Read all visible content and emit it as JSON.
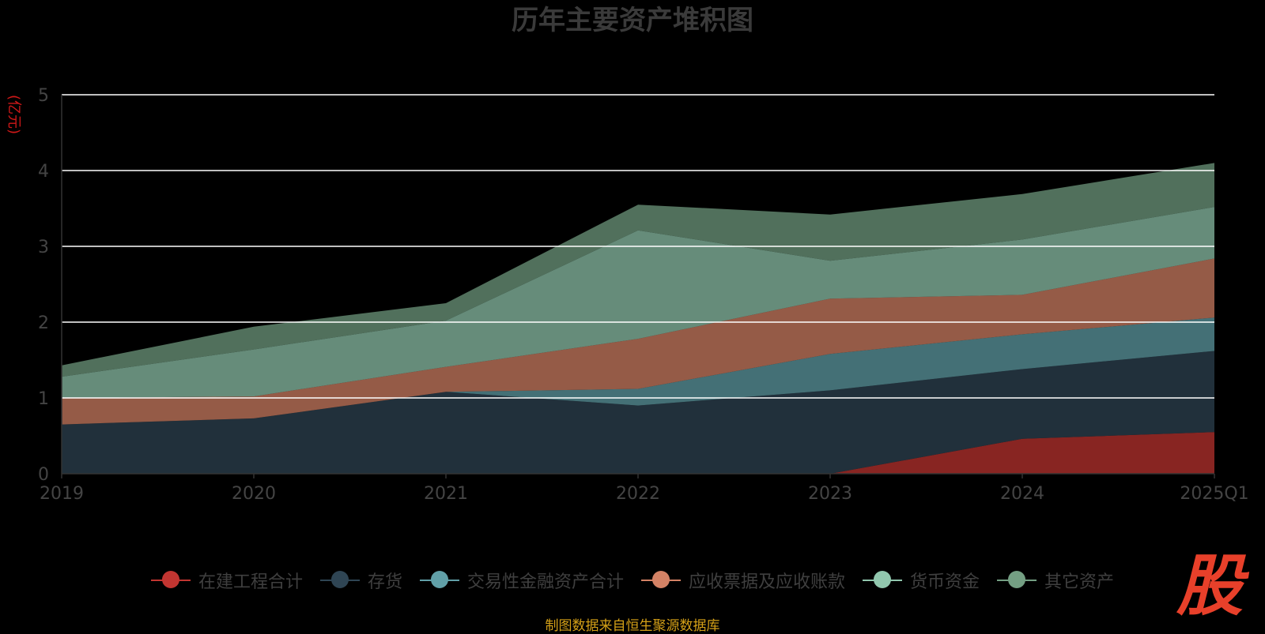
{
  "chart_data": {
    "type": "area",
    "stacked": true,
    "title": "历年主要资产堆积图",
    "ylabel": "(亿元)",
    "ylim": [
      0,
      5
    ],
    "yticks": [
      "0",
      "1",
      "2",
      "3",
      "4",
      "5"
    ],
    "categories": [
      "2019",
      "2020",
      "2021",
      "2022",
      "2023",
      "2024",
      "2025Q1"
    ],
    "series": [
      {
        "name": "在建工程合计",
        "color": "#c23531",
        "values": [
          0,
          0,
          0,
          0,
          0,
          0.46,
          0.55
        ]
      },
      {
        "name": "存货",
        "color": "#2f4554",
        "values": [
          0.65,
          0.73,
          1.08,
          0.9,
          1.1,
          0.92,
          1.07
        ]
      },
      {
        "name": "交易性金融资产合计",
        "color": "#61a0a8",
        "values": [
          0,
          0,
          0,
          0.22,
          0.48,
          0.46,
          0.44
        ]
      },
      {
        "name": "应收票据及应收账款",
        "color": "#d48265",
        "values": [
          0.35,
          0.29,
          0.33,
          0.66,
          0.73,
          0.52,
          0.78
        ]
      },
      {
        "name": "货币资金",
        "color": "#91c7ae",
        "values": [
          0.28,
          0.62,
          0.61,
          1.43,
          0.5,
          0.73,
          0.68
        ]
      },
      {
        "name": "其它资产",
        "color": "#749f83",
        "values": [
          0.15,
          0.3,
          0.23,
          0.34,
          0.61,
          0.6,
          0.58
        ]
      }
    ]
  },
  "legend": {
    "items": [
      {
        "label": "在建工程合计",
        "color": "#c23531"
      },
      {
        "label": "存货",
        "color": "#2f4554"
      },
      {
        "label": "交易性金融资产合计",
        "color": "#61a0a8"
      },
      {
        "label": "应收票据及应收账款",
        "color": "#d48265"
      },
      {
        "label": "货币资金",
        "color": "#91c7ae"
      },
      {
        "label": "其它资产",
        "color": "#749f83"
      }
    ]
  },
  "source_text": "制图数据来自恒生聚源数据库",
  "logo": {
    "text": "股",
    "color": "#e8402a"
  }
}
